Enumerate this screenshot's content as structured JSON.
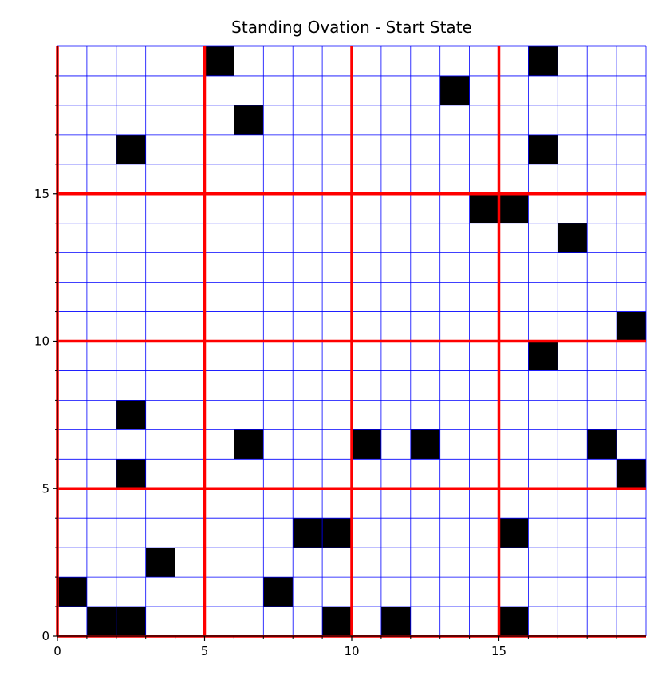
{
  "chart_data": {
    "type": "heatmap",
    "title": "Standing Ovation - Start State",
    "xlabel": "",
    "ylabel": "",
    "xlim": [
      0,
      20
    ],
    "ylim": [
      0,
      20
    ],
    "x_ticks": [
      0,
      5,
      10,
      15
    ],
    "y_ticks": [
      0,
      5,
      10,
      15
    ],
    "x_tick_labels": [
      "0",
      "5",
      "10",
      "15"
    ],
    "y_tick_labels": [
      "0",
      "5",
      "10",
      "15"
    ],
    "grid": true,
    "minor_grid_step": 1,
    "major_grid_step": 5,
    "cell_values": {
      "standing": 1,
      "seated": 0
    },
    "standing_cells": [
      [
        5,
        19
      ],
      [
        16,
        19
      ],
      [
        13,
        18
      ],
      [
        6,
        17
      ],
      [
        2,
        16
      ],
      [
        16,
        16
      ],
      [
        14,
        14
      ],
      [
        15,
        14
      ],
      [
        17,
        13
      ],
      [
        19,
        10
      ],
      [
        16,
        9
      ],
      [
        2,
        7
      ],
      [
        6,
        6
      ],
      [
        10,
        6
      ],
      [
        12,
        6
      ],
      [
        18,
        6
      ],
      [
        2,
        5
      ],
      [
        19,
        5
      ],
      [
        8,
        3
      ],
      [
        9,
        3
      ],
      [
        15,
        3
      ],
      [
        3,
        2
      ],
      [
        0,
        1
      ],
      [
        7,
        1
      ],
      [
        1,
        0
      ],
      [
        2,
        0
      ],
      [
        9,
        0
      ],
      [
        11,
        0
      ],
      [
        15,
        0
      ]
    ],
    "colors": {
      "standing": "#000000",
      "seated": "#ffffff",
      "minor_grid": "#0000ff",
      "major_grid": "#ff0000"
    }
  }
}
